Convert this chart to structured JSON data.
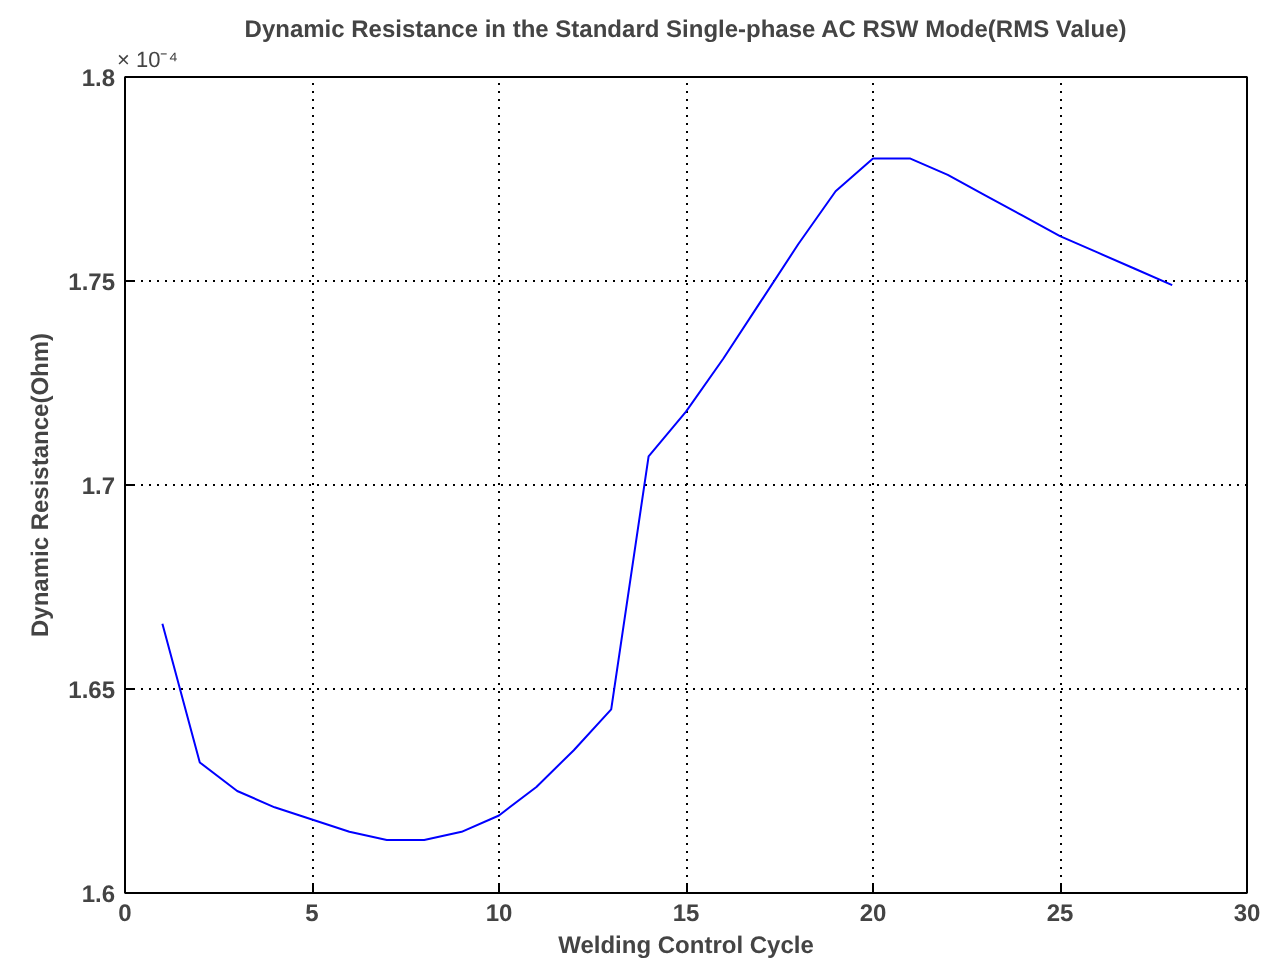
{
  "chart_data": {
    "type": "line",
    "title": "Dynamic Resistance in the Standard Single-phase AC RSW Mode(RMS Value)",
    "xlabel": "Welding Control Cycle",
    "ylabel": "Dynamic Resistance(Ohm)",
    "annotations": [
      "× 10⁻⁴"
    ],
    "x": [
      1,
      2,
      3,
      4,
      5,
      6,
      7,
      8,
      9,
      10,
      11,
      12,
      13,
      14,
      15,
      16,
      17,
      18,
      19,
      20,
      21,
      22,
      23,
      24,
      25,
      26,
      27,
      28
    ],
    "series": [
      {
        "color": "#0000ff",
        "values": [
          1.666,
          1.632,
          1.625,
          1.621,
          1.618,
          1.615,
          1.613,
          1.613,
          1.615,
          1.619,
          1.626,
          1.635,
          1.645,
          1.707,
          1.718,
          1.731,
          1.745,
          1.759,
          1.772,
          1.78,
          1.78,
          1.776,
          1.771,
          1.766,
          1.761,
          1.757,
          1.753,
          1.749
        ]
      }
    ],
    "xlim": [
      0,
      30
    ],
    "xticks": [
      0,
      5,
      10,
      15,
      20,
      25,
      30
    ],
    "ylim": [
      1.6,
      1.8
    ],
    "yticks": [
      {
        "value": 1.6,
        "label": "1.6"
      },
      {
        "value": 1.65,
        "label": "1.65"
      },
      {
        "value": 1.7,
        "label": "1.7"
      },
      {
        "value": 1.75,
        "label": "1.75"
      },
      {
        "value": 1.8,
        "label": "1.8"
      }
    ],
    "grid": true,
    "line_style": "solid",
    "marker": "none"
  }
}
